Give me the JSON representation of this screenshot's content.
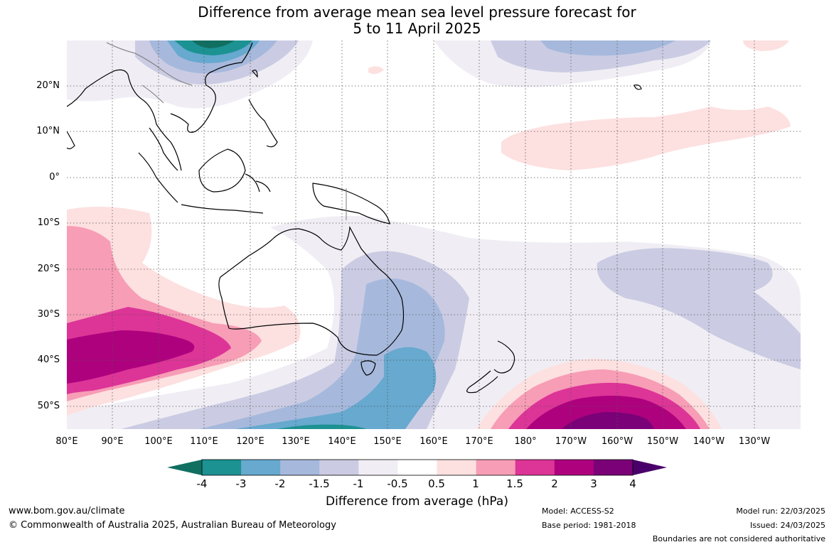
{
  "title": {
    "line1": "Difference from average mean sea level pressure forecast for",
    "line2": "5 to 11 April 2025"
  },
  "map": {
    "latitude_labels": [
      "20°N",
      "10°N",
      "0°",
      "10°S",
      "20°S",
      "30°S",
      "40°S",
      "50°S"
    ],
    "longitude_labels": [
      "80°E",
      "90°E",
      "100°E",
      "110°E",
      "120°E",
      "130°E",
      "140°E",
      "150°E",
      "160°E",
      "170°E",
      "180°",
      "170°W",
      "160°W",
      "150°W",
      "140°W",
      "130°W"
    ],
    "colors": {
      "land_outline": "#000000",
      "border": "#7a7a7a",
      "grid": "#555555"
    }
  },
  "colorbar": {
    "label": "Difference from average (hPa)",
    "ticks": [
      "-4",
      "-3",
      "-2",
      "-1.5",
      "-1",
      "-0.5",
      "0.5",
      "1",
      "1.5",
      "2",
      "3",
      "4"
    ],
    "colors": [
      "#116f62",
      "#1c9293",
      "#67a9cf",
      "#a6b9dc",
      "#cbcce3",
      "#f0eef4",
      "#ffffff",
      "#fde0e0",
      "#f79db6",
      "#dd3497",
      "#ae017e",
      "#7a0177",
      "#49006a"
    ]
  },
  "footer": {
    "website": "www.bom.gov.au/climate",
    "copyright": "© Commonwealth of Australia 2025, Australian Bureau of Meteorology",
    "model": "Model: ACCESS-S2",
    "base_period": "Base period: 1981-2018",
    "model_run": "Model run: 22/03/2025",
    "issued": "Issued: 24/03/2025",
    "disclaimer": "Boundaries are not considered authoritative"
  }
}
